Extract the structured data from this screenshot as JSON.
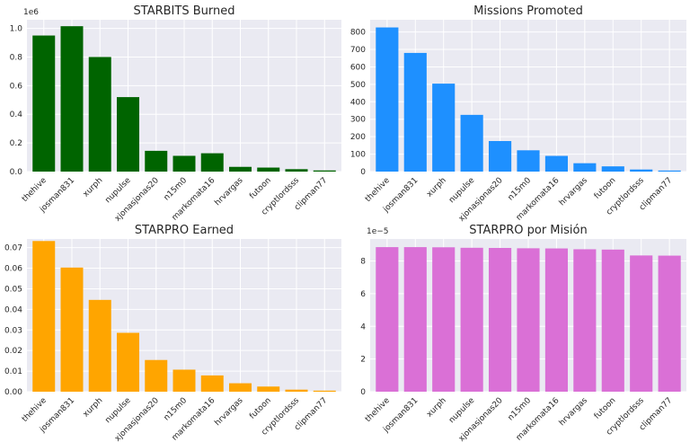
{
  "chart_data": [
    {
      "type": "bar",
      "title": "STARBITS Burned",
      "categories": [
        "thehive",
        "josman831",
        "xurph",
        "nupulse",
        "xjonasjonas20",
        "n15m0",
        "markomata16",
        "hrvargas",
        "futoon",
        "cryptlordsss",
        "clipman77"
      ],
      "values": [
        950000,
        1015000,
        800000,
        520000,
        145000,
        110000,
        128000,
        33000,
        28000,
        17000,
        8000
      ],
      "ylim": [
        0,
        1060000
      ],
      "yticks": [
        0,
        200000,
        400000,
        600000,
        800000,
        1000000
      ],
      "ytick_labels": [
        "0.0",
        "0.2",
        "0.4",
        "0.6",
        "0.8",
        "1.0"
      ],
      "offset_label": "1e6",
      "color": "#006400",
      "grid": true
    },
    {
      "type": "bar",
      "title": "Missions Promoted",
      "categories": [
        "thehive",
        "josman831",
        "xurph",
        "nupulse",
        "xjonasjonas20",
        "n15m0",
        "markomata16",
        "hrvargas",
        "futoon",
        "cryptlordsss",
        "clipman77"
      ],
      "values": [
        826,
        680,
        504,
        325,
        175,
        122,
        90,
        48,
        30,
        12,
        6
      ],
      "ylim": [
        0,
        870
      ],
      "yticks": [
        0,
        100,
        200,
        300,
        400,
        500,
        600,
        700,
        800
      ],
      "ytick_labels": [
        "0",
        "100",
        "200",
        "300",
        "400",
        "500",
        "600",
        "700",
        "800"
      ],
      "offset_label": "",
      "color": "#1e90ff",
      "grid": true
    },
    {
      "type": "bar",
      "title": "STARPRO Earned",
      "categories": [
        "thehive",
        "josman831",
        "xurph",
        "nupulse",
        "xjonasjonas20",
        "n15m0",
        "markomata16",
        "hrvargas",
        "futoon",
        "cryptlordsss",
        "clipman77"
      ],
      "values": [
        0.0732,
        0.0603,
        0.0446,
        0.0286,
        0.0154,
        0.0107,
        0.0079,
        0.0041,
        0.0025,
        0.001,
        0.0005
      ],
      "ylim": [
        0,
        0.0742
      ],
      "yticks": [
        0,
        0.01,
        0.02,
        0.03,
        0.04,
        0.05,
        0.06,
        0.07
      ],
      "ytick_labels": [
        "0.00",
        "0.01",
        "0.02",
        "0.03",
        "0.04",
        "0.05",
        "0.06",
        "0.07"
      ],
      "offset_label": "",
      "color": "#ffa500",
      "grid": true
    },
    {
      "type": "bar",
      "title": "STARPRO por Misión",
      "categories": [
        "thehive",
        "josman831",
        "xurph",
        "nupulse",
        "xjonasjonas20",
        "n15m0",
        "markomata16",
        "hrvargas",
        "futoon",
        "cryptlordsss",
        "clipman77"
      ],
      "values": [
        8.85e-05,
        8.85e-05,
        8.84e-05,
        8.81e-05,
        8.8e-05,
        8.78e-05,
        8.77e-05,
        8.72e-05,
        8.7e-05,
        8.34e-05,
        8.33e-05
      ],
      "ylim": [
        0,
        9.35e-05
      ],
      "yticks": [
        0,
        2e-05,
        4e-05,
        6e-05,
        8e-05
      ],
      "ytick_labels": [
        "0",
        "2",
        "4",
        "6",
        "8"
      ],
      "offset_label": "1e−5",
      "color": "#da70d6",
      "grid": true
    }
  ]
}
